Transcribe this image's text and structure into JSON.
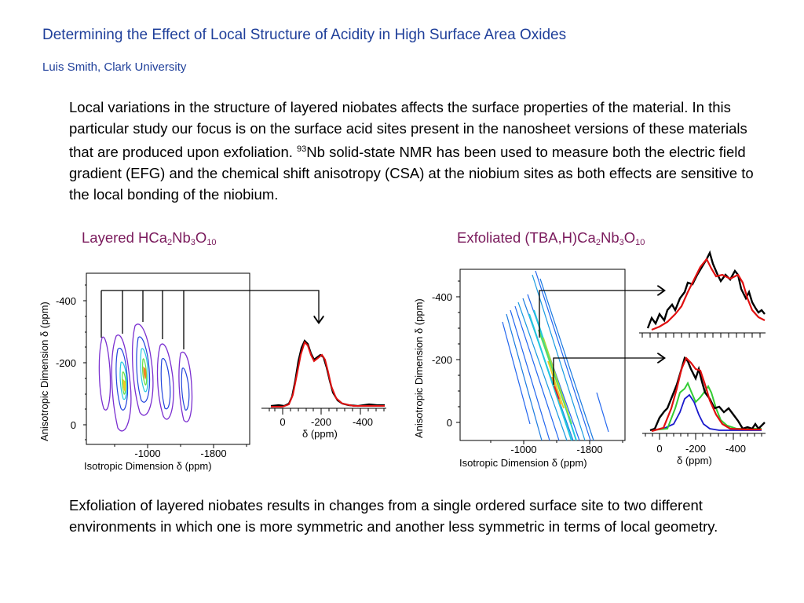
{
  "header": {
    "title": "Determining the Effect of Local Structure of Acidity in High Surface Area Oxides",
    "author": "Luis Smith, Clark University"
  },
  "intro": {
    "text_before_sup": "Local variations in the structure of layered niobates affects the surface properties of the material.  In this particular study our focus is on the surface acid sites present in the nanosheet versions of these materials that are produced upon exfoliation. ",
    "sup": "93",
    "text_after_sup": "Nb solid-state NMR has been used to measure both the electric field gradient (EFG) and the chemical shift anisotropy (CSA) at the niobium sites as both effects are sensitive to the local bonding of the niobium."
  },
  "left_panel": {
    "label": {
      "a": "Layered HCa",
      "s1": "2",
      "b": "Nb",
      "s2": "3",
      "c": "O",
      "s3": "10"
    },
    "y_axis_label": "Anisotropic Dimension  δ (ppm)",
    "x_axis_label": "Isotropic Dimension  δ (ppm)",
    "y_ticks": [
      "-400",
      "-200",
      "0"
    ],
    "x_ticks": [
      "-1000",
      "-1800"
    ],
    "spectrum_ticks": [
      "0",
      "-200",
      "-400"
    ],
    "spectrum_xlabel": "δ (ppm)"
  },
  "right_panel": {
    "label": {
      "a": "Exfoliated (TBA,H)Ca",
      "s1": "2",
      "b": "Nb",
      "s2": "3",
      "c": "O",
      "s3": "10"
    },
    "y_axis_label": "Anisotropic Dimension  δ (ppm)",
    "x_axis_label": "Isotropic Dimension  δ (ppm)",
    "y_ticks": [
      "-400",
      "-200",
      "0"
    ],
    "x_ticks": [
      "-1000",
      "-1800"
    ],
    "spectrum_ticks": [
      "0",
      "-200",
      "-400"
    ],
    "spectrum_xlabel": "δ (ppm)"
  },
  "conclusion": "Exfoliation of layered niobates results in changes from a single ordered surface site to two different environments in which one is more symmetric and another less symmetric in terms of local geometry.",
  "colors": {
    "title": "#1f3f9a",
    "panel_label": "#7a1a5c",
    "experimental": "#000000",
    "fit": "#e01010",
    "site_green": "#33cc33",
    "site_blue": "#1a1acc"
  }
}
